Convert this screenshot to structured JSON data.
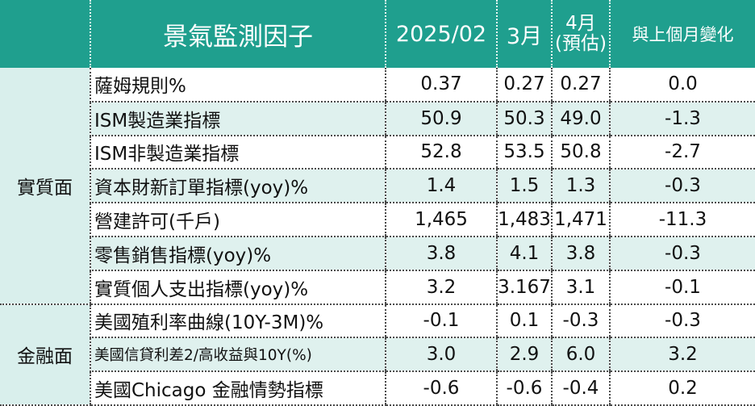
{
  "header": {
    "factor": "景氣監測因子",
    "date": "2025/02",
    "month": "3月",
    "estimate_month": "4月",
    "estimate_note": "(預估)",
    "change": "與上個月變化"
  },
  "groups": [
    {
      "name": "實質面",
      "rows": [
        {
          "name": "薩姆規則%",
          "v1": "0.37",
          "v2": "0.27",
          "v3": "0.27",
          "change": "0.0"
        },
        {
          "name": "ISM製造業指標",
          "v1": "50.9",
          "v2": "50.3",
          "v3": "49.0",
          "change": "-1.3"
        },
        {
          "name": "ISM非製造業指標",
          "v1": "52.8",
          "v2": "53.5",
          "v3": "50.8",
          "change": "-2.7"
        },
        {
          "name": "資本財新訂單指標(yoy)%",
          "v1": "1.4",
          "v2": "1.5",
          "v3": "1.3",
          "change": "-0.3"
        },
        {
          "name": "營建許可(千戶)",
          "v1": "1,465",
          "v2": "1,483",
          "v3": "1,471",
          "change": "-11.3"
        },
        {
          "name": "零售銷售指標(yoy)%",
          "v1": "3.8",
          "v2": "4.1",
          "v3": "3.8",
          "change": "-0.3"
        },
        {
          "name": "實質個人支出指標(yoy)%",
          "v1": "3.2",
          "v2": "3.167",
          "v3": "3.1",
          "change": "-0.1"
        }
      ]
    },
    {
      "name": "金融面",
      "rows": [
        {
          "name": "美國殖利率曲線(10Y-3M)%",
          "v1": "-0.1",
          "v2": "0.1",
          "v3": "-0.3",
          "change": "-0.3"
        },
        {
          "name": "美國信貸利差2/高收益與10Y(%)",
          "v1": "3.0",
          "v2": "2.9",
          "v3": "6.0",
          "change": "3.2"
        },
        {
          "name": "美國Chicago 金融情勢指標",
          "v1": "-0.6",
          "v2": "-0.6",
          "v3": "-0.4",
          "change": "0.2"
        }
      ]
    }
  ],
  "colors": {
    "header_bg": "#1f9f8e",
    "row_shade": "#dff1ee",
    "group_bg": "#d9efec"
  }
}
